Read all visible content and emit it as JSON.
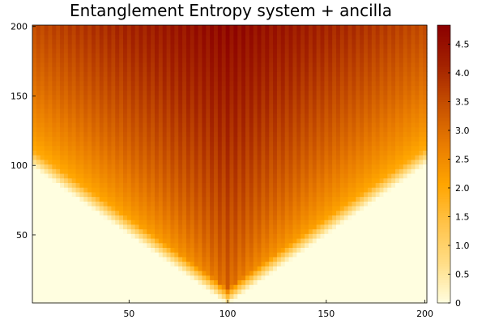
{
  "chart_data": {
    "type": "heatmap",
    "title": "Entanglement Entropy system + ancilla",
    "xlabel": "",
    "ylabel": "",
    "x_range": [
      1,
      201
    ],
    "y_range": [
      1,
      201
    ],
    "x_ticks": [
      50,
      100,
      150,
      200
    ],
    "y_ticks": [
      50,
      100,
      150,
      200
    ],
    "colorbar": {
      "range": [
        0,
        4.83
      ],
      "ticks": [
        "0",
        "0.5",
        "1.0",
        "1.5",
        "2.0",
        "2.5",
        "3.0",
        "3.5",
        "4.0",
        "4.5"
      ],
      "tick_values": [
        0,
        0.5,
        1.0,
        1.5,
        2.0,
        2.5,
        3.0,
        3.5,
        4.0,
        4.5
      ],
      "colormap": [
        "#fffee0",
        "#ffde87",
        "#ffc34a",
        "#ffa500",
        "#e97c00",
        "#c75000",
        "#a32200",
        "#8b0000"
      ]
    },
    "field": {
      "description": "light-cone spreading from site 100 at t=0; entropy grows within cone, saturating near top center",
      "source_x": 100,
      "cone_half_width_per_step": 1.0,
      "max_value": 4.83,
      "edge_value": 1.2,
      "odd_even_stripe_amplitude": 0.35
    },
    "grid": false,
    "legend": "colorbar-right"
  }
}
